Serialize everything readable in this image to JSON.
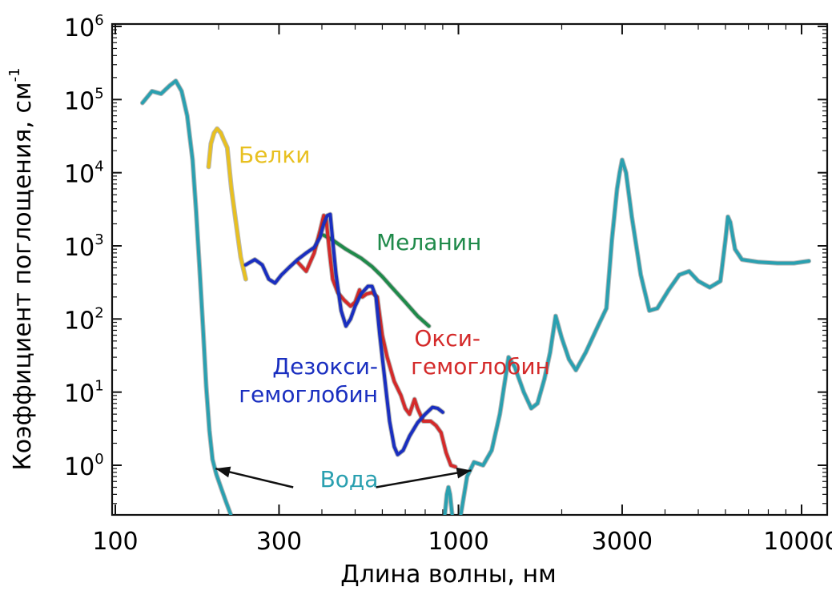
{
  "chart_data": {
    "type": "line",
    "xlabel": "Длина волны, нм",
    "ylabel": "Коэффициент поглощения, см",
    "ylabel_exponent": "-1",
    "xscale": "log",
    "yscale": "log",
    "xlim": [
      100,
      13000
    ],
    "ylim": [
      0.15,
      1000000
    ],
    "x_ticks": [
      {
        "value": 100,
        "label": "100"
      },
      {
        "value": 300,
        "label": "300"
      },
      {
        "value": 1000,
        "label": "1000"
      },
      {
        "value": 3000,
        "label": "3000"
      },
      {
        "value": 10000,
        "label": "10000"
      }
    ],
    "y_ticks": [
      {
        "value": 1,
        "base": "10",
        "exp": "0"
      },
      {
        "value": 10,
        "base": "10",
        "exp": "1"
      },
      {
        "value": 100,
        "base": "10",
        "exp": "2"
      },
      {
        "value": 1000,
        "base": "10",
        "exp": "3"
      },
      {
        "value": 10000,
        "base": "10",
        "exp": "4"
      },
      {
        "value": 100000,
        "base": "10",
        "exp": "5"
      },
      {
        "value": 1000000,
        "base": "10",
        "exp": "6"
      }
    ],
    "annotations": [
      {
        "lines": [
          "Белки"
        ],
        "color": "#e8c020",
        "series": "protein"
      },
      {
        "lines": [
          "Меланин"
        ],
        "color": "#1f8a4a",
        "series": "melanin"
      },
      {
        "lines": [
          "Окси-",
          "гемоглобин"
        ],
        "color": "#d42a2a",
        "series": "oxy"
      },
      {
        "lines": [
          "Дезокси-",
          "гемоглобин"
        ],
        "color": "#1a2fc0",
        "series": "deoxy"
      },
      {
        "lines": [
          "Вода"
        ],
        "color": "#2aa0b0",
        "series": "water"
      }
    ],
    "series": [
      {
        "id": "water",
        "name": "Вода",
        "color": "#2aa0b0",
        "segments": [
          [
            [
              120,
              90000
            ],
            [
              128,
              130000
            ],
            [
              136,
              120000
            ],
            [
              144,
              155000
            ],
            [
              150,
              180000
            ],
            [
              156,
              130000
            ],
            [
              162,
              60000
            ],
            [
              168,
              15000
            ],
            [
              172,
              3000
            ],
            [
              176,
              500
            ],
            [
              180,
              80
            ],
            [
              184,
              12
            ],
            [
              188,
              3
            ],
            [
              192,
              1.2
            ],
            [
              197,
              0.75
            ],
            [
              203,
              0.5
            ],
            [
              210,
              0.32
            ],
            [
              218,
              0.2
            ]
          ],
          [
            [
              910,
              0.18
            ],
            [
              925,
              0.4
            ],
            [
              935,
              0.5
            ],
            [
              945,
              0.4
            ],
            [
              960,
              0.2
            ]
          ],
          [
            [
              1010,
              0.18
            ],
            [
              1060,
              0.7
            ],
            [
              1110,
              1.1
            ],
            [
              1180,
              1.0
            ],
            [
              1250,
              1.6
            ],
            [
              1320,
              5
            ],
            [
              1400,
              30
            ],
            [
              1460,
              22
            ],
            [
              1550,
              10
            ],
            [
              1630,
              6
            ],
            [
              1700,
              7
            ],
            [
              1780,
              15
            ],
            [
              1850,
              35
            ],
            [
              1920,
              110
            ],
            [
              2000,
              55
            ],
            [
              2100,
              28
            ],
            [
              2200,
              20
            ],
            [
              2350,
              35
            ],
            [
              2550,
              80
            ],
            [
              2700,
              140
            ],
            [
              2800,
              1200
            ],
            [
              2900,
              6000
            ],
            [
              2950,
              10000
            ],
            [
              3000,
              15000
            ],
            [
              3080,
              10000
            ],
            [
              3200,
              2500
            ],
            [
              3400,
              400
            ],
            [
              3600,
              130
            ],
            [
              3800,
              140
            ],
            [
              4100,
              250
            ],
            [
              4400,
              400
            ],
            [
              4700,
              450
            ],
            [
              5000,
              330
            ],
            [
              5400,
              270
            ],
            [
              5800,
              330
            ],
            [
              6000,
              1200
            ],
            [
              6100,
              2500
            ],
            [
              6200,
              2100
            ],
            [
              6400,
              900
            ],
            [
              6700,
              650
            ],
            [
              7500,
              600
            ],
            [
              8500,
              580
            ],
            [
              9500,
              580
            ],
            [
              10500,
              620
            ]
          ]
        ]
      },
      {
        "id": "protein",
        "name": "Белки",
        "color": "#e8c020",
        "segments": [
          [
            [
              187,
              12000
            ],
            [
              190,
              25000
            ],
            [
              194,
              35000
            ],
            [
              198,
              40000
            ],
            [
              203,
              35000
            ],
            [
              207,
              28000
            ],
            [
              212,
              22000
            ],
            [
              218,
              6000
            ],
            [
              225,
              2000
            ],
            [
              232,
              700
            ],
            [
              240,
              350
            ]
          ]
        ]
      },
      {
        "id": "melanin",
        "name": "Меланин",
        "color": "#1f8a4a",
        "segments": [
          [
            [
              405,
              1400
            ],
            [
              430,
              1200
            ],
            [
              470,
              900
            ],
            [
              520,
              680
            ],
            [
              560,
              520
            ],
            [
              600,
              380
            ],
            [
              640,
              270
            ],
            [
              700,
              170
            ],
            [
              760,
              110
            ],
            [
              820,
              80
            ]
          ]
        ]
      },
      {
        "id": "oxy",
        "name": "Окси-гемоглобин",
        "color": "#d42a2a",
        "segments": [
          [
            [
              340,
              600
            ],
            [
              360,
              450
            ],
            [
              380,
              800
            ],
            [
              395,
              1600
            ],
            [
              405,
              2600
            ],
            [
              412,
              2200
            ],
            [
              420,
              900
            ],
            [
              430,
              350
            ],
            [
              445,
              230
            ],
            [
              465,
              180
            ],
            [
              485,
              150
            ],
            [
              500,
              170
            ],
            [
              515,
              250
            ],
            [
              525,
              200
            ],
            [
              540,
              220
            ],
            [
              560,
              230
            ],
            [
              580,
              200
            ],
            [
              600,
              60
            ],
            [
              620,
              30
            ],
            [
              650,
              14
            ],
            [
              680,
              9
            ],
            [
              700,
              6
            ],
            [
              720,
              5
            ],
            [
              745,
              8
            ],
            [
              760,
              6
            ],
            [
              790,
              4
            ],
            [
              830,
              4
            ],
            [
              860,
              3.5
            ],
            [
              890,
              2.8
            ],
            [
              920,
              1.5
            ],
            [
              950,
              1.0
            ],
            [
              980,
              0.95
            ]
          ]
        ]
      },
      {
        "id": "deoxy",
        "name": "Дезокси-гемоглобин",
        "color": "#1a2fc0",
        "segments": [
          [
            [
              240,
              550
            ],
            [
              255,
              650
            ],
            [
              268,
              550
            ],
            [
              280,
              350
            ],
            [
              292,
              310
            ],
            [
              305,
              400
            ],
            [
              320,
              500
            ],
            [
              340,
              650
            ],
            [
              360,
              800
            ],
            [
              380,
              950
            ],
            [
              395,
              1300
            ],
            [
              405,
              2000
            ],
            [
              415,
              2600
            ],
            [
              423,
              2700
            ],
            [
              430,
              1200
            ],
            [
              440,
              400
            ],
            [
              455,
              130
            ],
            [
              470,
              80
            ],
            [
              485,
              100
            ],
            [
              500,
              150
            ],
            [
              520,
              220
            ],
            [
              545,
              280
            ],
            [
              560,
              280
            ],
            [
              575,
              200
            ],
            [
              590,
              60
            ],
            [
              610,
              15
            ],
            [
              630,
              4
            ],
            [
              650,
              1.8
            ],
            [
              665,
              1.4
            ],
            [
              690,
              1.6
            ],
            [
              720,
              2.5
            ],
            [
              760,
              3.8
            ],
            [
              800,
              5
            ],
            [
              840,
              6.2
            ],
            [
              870,
              6
            ],
            [
              900,
              5.3
            ]
          ]
        ]
      }
    ],
    "arrows": [
      {
        "from": [
          330,
          0.5
        ],
        "to": [
          196,
          0.9
        ]
      },
      {
        "from": [
          575,
          0.5
        ],
        "to": [
          1090,
          0.85
        ]
      }
    ]
  }
}
